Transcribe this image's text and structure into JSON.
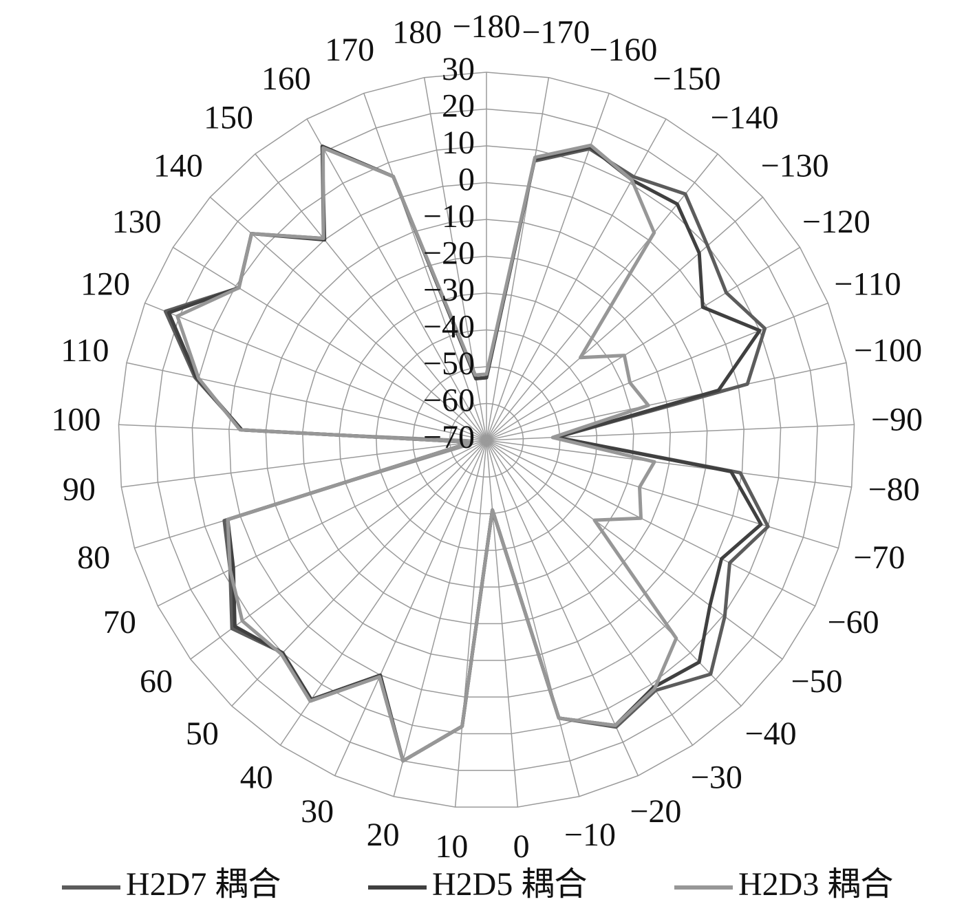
{
  "chart_data": {
    "type": "radar",
    "categories": [
      "−180",
      "−170",
      "−160",
      "−150",
      "−140",
      "−130",
      "−120",
      "−110",
      "−100",
      "−90",
      "−80",
      "−70",
      "−60",
      "−50",
      "−40",
      "−30",
      "−20",
      "−10",
      "0",
      "10",
      "20",
      "30",
      "40",
      "50",
      "60",
      "70",
      "80",
      "90",
      "100",
      "110",
      "120",
      "130",
      "140",
      "150",
      "160",
      "170",
      "180"
    ],
    "series": [
      {
        "name": "H2D7 耦合",
        "color": "#5c5c5c",
        "values": [
          -53,
          7,
          14,
          12,
          16,
          10,
          6.5,
          11.5,
          2.5,
          -51,
          -0.5,
          10,
          4,
          10.5,
          18,
          12,
          15.5,
          8,
          -51,
          8,
          20,
          0.5,
          15.5,
          10,
          16,
          8,
          4.5,
          -66,
          -3.5,
          11,
          24,
          9,
          15,
          0.5,
          21.5,
          6,
          -53
        ]
      },
      {
        "name": "H2D5 耦合",
        "color": "#404040",
        "values": [
          -53,
          7.5,
          14.5,
          11,
          12.5,
          7,
          -1,
          10,
          -5.5,
          -51,
          -3,
          8,
          1.5,
          5.5,
          13.5,
          11,
          15,
          8,
          -51,
          8,
          20,
          0,
          15,
          10,
          15,
          7,
          3.5,
          -66,
          -3.5,
          10.5,
          23,
          9,
          15,
          0,
          21.5,
          6,
          -53
        ]
      },
      {
        "name": "H2D3 耦合",
        "color": "#979797",
        "values": [
          -52,
          8,
          15,
          11,
          2.5,
          -36,
          -26,
          -28,
          -25,
          -52,
          -24,
          -26.5,
          -23,
          -33.5,
          4.5,
          11.5,
          15,
          8,
          -51,
          8,
          20,
          0.5,
          15.5,
          10.5,
          12.5,
          8,
          3.5,
          -66,
          -3,
          10,
          20.5,
          9,
          15,
          0.5,
          21,
          6,
          -52
        ]
      }
    ],
    "rlim": [
      -70,
      30
    ],
    "rticks": [
      {
        "value": -70,
        "label": "−70"
      },
      {
        "value": -60,
        "label": "−60"
      },
      {
        "value": -50,
        "label": "−50"
      },
      {
        "value": -40,
        "label": "−40"
      },
      {
        "value": -30,
        "label": "−30"
      },
      {
        "value": -20,
        "label": "−20"
      },
      {
        "value": -10,
        "label": "−10"
      },
      0,
      10,
      20,
      30
    ],
    "grid": true,
    "legend": "bottom"
  }
}
